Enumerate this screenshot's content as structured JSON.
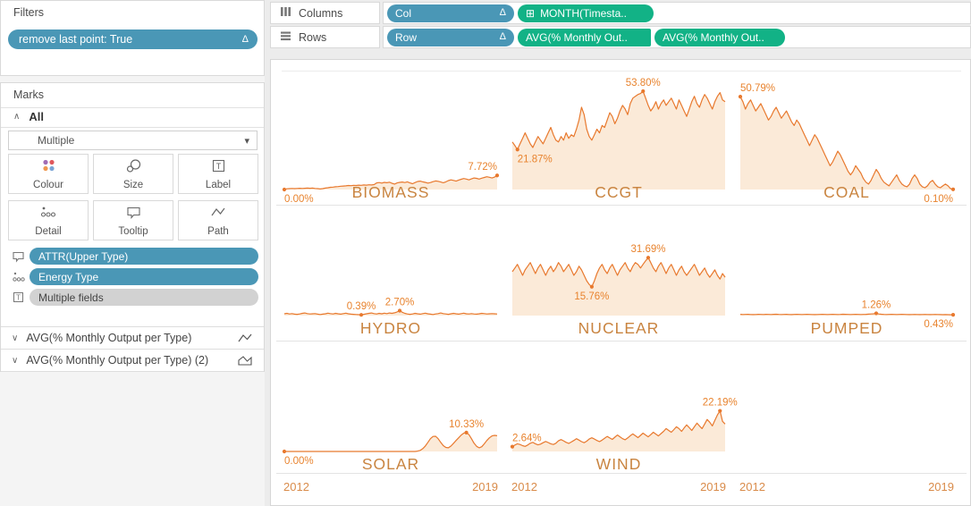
{
  "app": {
    "accent_blue": "#4a97b6",
    "accent_green": "#12b286"
  },
  "sidebar": {
    "filters": {
      "title": "Filters",
      "pill": {
        "label": "remove last point: True",
        "delta": "Δ"
      }
    },
    "marks": {
      "title": "Marks",
      "all_header": "All",
      "mark_type": "Multiple",
      "buttons": [
        {
          "label": "Colour"
        },
        {
          "label": "Size"
        },
        {
          "label": "Label"
        },
        {
          "label": "Detail"
        },
        {
          "label": "Tooltip"
        },
        {
          "label": "Path"
        }
      ],
      "encodings": [
        {
          "icon": "tooltip-icon",
          "label": "ATTR(Upper Type)",
          "style": "blue"
        },
        {
          "icon": "detail-icon",
          "label": "Energy Type",
          "style": "blue"
        },
        {
          "icon": "label-icon",
          "label": "Multiple fields",
          "style": "gray"
        }
      ],
      "measures": [
        {
          "label": "AVG(% Monthly Output per Type)",
          "icon": "line-chart-icon"
        },
        {
          "label": "AVG(% Monthly Output per Type) (2)",
          "icon": "area-chart-icon"
        }
      ]
    }
  },
  "shelves": {
    "columns": {
      "label": "Columns",
      "pills": [
        {
          "label": "Col",
          "delta": "Δ"
        },
        {
          "label": "MONTH(Timesta..",
          "plus": "⊞"
        }
      ]
    },
    "rows": {
      "label": "Rows",
      "pills": [
        {
          "label": "Row",
          "delta": "Δ"
        },
        {
          "label": "AVG(% Monthly Out.."
        },
        {
          "label": "AVG(% Monthly Out.."
        }
      ]
    }
  },
  "chart_data": {
    "type": "area",
    "title": "",
    "measure": "AVG(% Monthly Output per Type)",
    "x_label_start": "2012",
    "x_label_end": "2019",
    "x_unit": "month",
    "x_span_years": [
      2012,
      2019
    ],
    "ylim": [
      0,
      65
    ],
    "y_format": "percent",
    "grid_rows": 3,
    "grid_cols": 3,
    "legend": "none",
    "colors": {
      "line": "#e8792e",
      "fill": "#fbead8",
      "label": "#e8832e",
      "category": "#c98440",
      "axis": "#d98b4a"
    },
    "cells": [
      {
        "name": "BIOMASS",
        "row": 0,
        "col": 0,
        "values": [
          0.0,
          0.4,
          0.5,
          0.6,
          0.5,
          0.6,
          0.7,
          0.6,
          0.7,
          0.8,
          0.7,
          0.8,
          0.6,
          0.5,
          0.3,
          0.5,
          0.8,
          1.0,
          1.2,
          1.3,
          1.5,
          1.6,
          1.8,
          1.9,
          2.0,
          2.2,
          2.1,
          2.3,
          2.2,
          2.4,
          2.3,
          2.5,
          2.4,
          2.6,
          2.5,
          2.7,
          3.6,
          3.8,
          3.5,
          3.9,
          3.7,
          4.0,
          3.4,
          3.0,
          3.6,
          3.9,
          4.1,
          3.8,
          4.2,
          3.6,
          3.2,
          3.8,
          4.4,
          4.6,
          4.2,
          3.9,
          3.5,
          3.8,
          4.3,
          4.7,
          4.5,
          4.1,
          3.7,
          4.2,
          4.9,
          5.3,
          5.0,
          4.6,
          5.2,
          5.6,
          6.0,
          5.7,
          5.3,
          5.8,
          6.3,
          6.1,
          5.7,
          6.2,
          6.6,
          7.0,
          6.7,
          6.3,
          6.8,
          7.72
        ],
        "point_labels": [
          {
            "i": 0,
            "text": "0.00%",
            "pos": "below"
          },
          {
            "i": 83,
            "text": "7.72%",
            "pos": "above"
          }
        ]
      },
      {
        "name": "CCGT",
        "row": 0,
        "col": 1,
        "values": [
          26,
          24,
          21.87,
          25,
          28,
          31,
          28,
          25,
          23,
          26,
          29,
          27,
          25,
          28,
          31,
          34,
          30,
          27,
          26,
          29,
          27,
          31,
          28,
          30,
          29,
          33,
          38,
          45,
          41,
          33,
          29,
          27,
          30,
          33,
          31,
          35,
          34,
          38,
          42,
          40,
          36,
          39,
          43,
          46,
          44,
          41,
          47,
          50,
          51,
          52,
          52.5,
          53.8,
          50,
          46,
          43,
          45,
          48,
          44,
          47,
          49,
          46,
          48,
          50,
          47,
          44,
          49,
          46,
          43,
          40,
          44,
          48,
          51,
          47,
          45,
          49,
          52,
          50,
          47,
          44,
          48,
          51,
          53,
          49,
          48
        ],
        "point_labels": [
          {
            "i": 2,
            "text": "21.87%",
            "pos": "below"
          },
          {
            "i": 51,
            "text": "53.80%",
            "pos": "above"
          }
        ]
      },
      {
        "name": "COAL",
        "row": 0,
        "col": 2,
        "values": [
          50.79,
          48,
          44,
          47,
          49,
          46,
          43,
          45,
          47,
          44,
          41,
          38,
          40,
          43,
          45,
          42,
          39,
          41,
          43,
          40,
          37,
          35,
          38,
          36,
          33,
          30,
          27,
          24,
          27,
          30,
          28,
          25,
          22,
          19,
          16,
          13,
          15,
          18,
          21,
          19,
          16,
          13,
          10,
          8,
          10,
          13,
          11,
          9,
          6,
          4,
          3,
          5,
          8,
          11,
          9,
          6,
          4,
          3,
          2,
          4,
          6,
          8,
          5,
          3,
          2,
          1.5,
          3,
          6,
          8,
          6,
          3,
          1.5,
          1,
          2,
          4,
          5,
          3,
          1.5,
          1,
          2,
          3,
          2,
          0.5,
          0.1
        ],
        "point_labels": [
          {
            "i": 0,
            "text": "50.79%",
            "pos": "above"
          },
          {
            "i": 83,
            "text": "0.10%",
            "pos": "below"
          }
        ]
      },
      {
        "name": "HYDRO",
        "row": 1,
        "col": 0,
        "values": [
          1.0,
          1.2,
          0.9,
          1.1,
          0.8,
          0.7,
          0.9,
          1.2,
          1.4,
          1.1,
          0.9,
          1.0,
          1.1,
          0.8,
          0.6,
          0.8,
          1.0,
          1.3,
          1.1,
          0.9,
          1.2,
          1.0,
          0.8,
          1.1,
          1.3,
          1.0,
          0.8,
          0.7,
          0.6,
          0.5,
          0.39,
          0.7,
          1.0,
          1.2,
          1.4,
          1.1,
          0.9,
          1.2,
          1.0,
          1.3,
          1.1,
          1.4,
          1.2,
          1.5,
          2.0,
          2.7,
          1.8,
          1.2,
          0.9,
          0.7,
          0.9,
          1.2,
          1.0,
          0.8,
          1.1,
          1.3,
          1.0,
          0.8,
          0.6,
          0.9,
          1.1,
          1.4,
          1.1,
          0.9,
          0.7,
          1.0,
          1.2,
          1.0,
          0.8,
          1.1,
          1.3,
          1.0,
          0.9,
          1.1,
          0.9,
          0.8,
          1.0,
          1.2,
          1.1,
          0.9,
          1.0,
          1.1,
          1.0,
          0.9
        ],
        "point_labels": [
          {
            "i": 30,
            "text": "0.39%",
            "pos": "above"
          },
          {
            "i": 45,
            "text": "2.70%",
            "pos": "above"
          }
        ]
      },
      {
        "name": "NUCLEAR",
        "row": 1,
        "col": 1,
        "values": [
          24,
          26,
          28,
          25,
          22,
          25,
          27,
          29,
          26,
          23,
          26,
          28,
          25,
          22,
          25,
          27,
          24,
          26,
          29,
          27,
          24,
          26,
          28,
          25,
          22,
          24,
          27,
          25,
          22,
          19,
          17,
          15.76,
          19,
          23,
          26,
          28,
          25,
          23,
          26,
          28,
          25,
          22,
          25,
          27,
          29,
          26,
          24,
          27,
          29,
          28,
          26,
          28,
          30,
          31.69,
          29,
          26,
          24,
          27,
          29,
          26,
          23,
          26,
          28,
          25,
          22,
          25,
          27,
          24,
          22,
          24,
          26,
          28,
          25,
          22,
          24,
          26,
          23,
          21,
          23,
          25,
          22,
          20,
          23,
          21
        ],
        "point_labels": [
          {
            "i": 31,
            "text": "15.76%",
            "pos": "below"
          },
          {
            "i": 53,
            "text": "31.69%",
            "pos": "above"
          }
        ]
      },
      {
        "name": "PUMPED",
        "row": 1,
        "col": 2,
        "values": [
          0.7,
          0.6,
          0.65,
          0.7,
          0.6,
          0.55,
          0.6,
          0.7,
          0.65,
          0.6,
          0.7,
          0.65,
          0.6,
          0.7,
          0.75,
          0.65,
          0.6,
          0.65,
          0.7,
          0.6,
          0.55,
          0.65,
          0.7,
          0.65,
          0.6,
          0.65,
          0.7,
          0.65,
          0.6,
          0.55,
          0.6,
          0.65,
          0.7,
          0.65,
          0.6,
          0.65,
          0.7,
          0.65,
          0.6,
          0.65,
          0.75,
          0.7,
          0.65,
          0.6,
          0.65,
          0.7,
          0.65,
          0.6,
          0.65,
          0.7,
          0.8,
          0.9,
          1.0,
          1.26,
          0.9,
          0.75,
          0.65,
          0.6,
          0.65,
          0.7,
          0.65,
          0.6,
          0.65,
          0.7,
          0.65,
          0.6,
          0.55,
          0.6,
          0.65,
          0.6,
          0.55,
          0.6,
          0.65,
          0.6,
          0.55,
          0.6,
          0.65,
          0.6,
          0.55,
          0.5,
          0.55,
          0.5,
          0.45,
          0.43
        ],
        "point_labels": [
          {
            "i": 53,
            "text": "1.26%",
            "pos": "above"
          },
          {
            "i": 83,
            "text": "0.43%",
            "pos": "below"
          }
        ]
      },
      {
        "name": "SOLAR",
        "row": 2,
        "col": 0,
        "values": [
          0,
          0,
          0,
          0,
          0,
          0,
          0,
          0,
          0,
          0,
          0,
          0,
          0,
          0,
          0,
          0,
          0,
          0,
          0,
          0,
          0,
          0,
          0,
          0,
          0,
          0,
          0,
          0,
          0,
          0,
          0,
          0,
          0,
          0,
          0,
          0,
          0,
          0,
          0,
          0,
          0,
          0,
          0,
          0,
          0,
          0,
          0,
          0,
          0,
          0,
          0,
          0,
          0.2,
          0.6,
          1.5,
          3.0,
          5.0,
          7.0,
          8.2,
          8.3,
          7.0,
          5.0,
          3.2,
          2.2,
          2.0,
          3.0,
          4.5,
          6.0,
          7.5,
          9.0,
          10.0,
          10.33,
          9.2,
          7.0,
          4.5,
          2.8,
          2.0,
          2.6,
          4.2,
          6.0,
          7.5,
          8.5,
          8.8,
          8.6
        ],
        "point_labels": [
          {
            "i": 0,
            "text": "0.00%",
            "pos": "below"
          },
          {
            "i": 71,
            "text": "10.33%",
            "pos": "above"
          }
        ]
      },
      {
        "name": "WIND",
        "row": 2,
        "col": 1,
        "values": [
          2.64,
          3.5,
          4.2,
          3.8,
          3.2,
          2.8,
          3.5,
          4.5,
          5.0,
          4.2,
          3.6,
          4.0,
          4.8,
          5.5,
          4.9,
          4.2,
          3.8,
          4.5,
          5.8,
          6.5,
          5.8,
          5.0,
          4.4,
          5.2,
          6.0,
          7.0,
          6.2,
          5.4,
          4.8,
          5.6,
          6.8,
          7.5,
          6.8,
          6.0,
          5.4,
          6.2,
          7.2,
          8.2,
          7.4,
          6.6,
          7.8,
          9.0,
          8.0,
          7.0,
          6.4,
          7.4,
          8.6,
          9.6,
          8.6,
          7.6,
          8.8,
          10.0,
          9.0,
          8.0,
          9.2,
          10.5,
          9.5,
          8.5,
          9.8,
          11.0,
          12.5,
          11.5,
          10.5,
          12.0,
          13.5,
          12.5,
          11.0,
          12.8,
          14.5,
          13.0,
          11.5,
          13.5,
          15.5,
          14.0,
          12.5,
          15.0,
          17.5,
          16.0,
          14.0,
          17.0,
          20.0,
          22.19,
          16.5,
          15.0
        ],
        "point_labels": [
          {
            "i": 0,
            "text": "2.64%",
            "pos": "above"
          },
          {
            "i": 81,
            "text": "22.19%",
            "pos": "above"
          }
        ]
      }
    ]
  }
}
